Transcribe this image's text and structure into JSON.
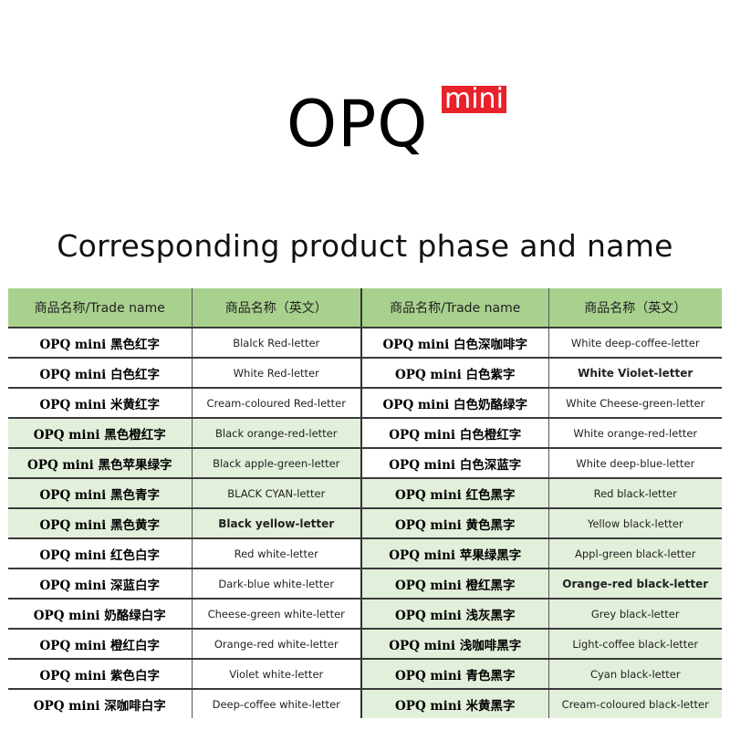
{
  "header": {
    "brand": "OPQ",
    "badge": "mini",
    "badge_color": "#e8222a",
    "subtitle": "Corresponding product phase and name"
  },
  "table": {
    "header_color": "#a9d18e",
    "row_green": "#e2efda",
    "columns": [
      "商品名称/Trade name",
      "商品名称（英文）",
      "商品名称/Trade name",
      "商品名称（英文）"
    ],
    "rows": [
      {
        "left_name": "OPQ mini 黑色红字",
        "left_en": "Blalck Red-letter",
        "left_green": false,
        "right_name": "OPQ mini 白色深咖啡字",
        "right_en": "White deep-coffee-letter",
        "right_green": false
      },
      {
        "left_name": "OPQ mini 白色红字",
        "left_en": "White Red-letter",
        "left_green": false,
        "right_name": "OPQ mini 白色紫字",
        "right_en": "White Violet-letter",
        "right_green": false
      },
      {
        "left_name": "OPQ mini 米黄红字",
        "left_en": "Cream-coloured Red-letter",
        "left_green": false,
        "right_name": "OPQ mini 白色奶酪绿字",
        "right_en": "White Cheese-green-letter",
        "right_green": false
      },
      {
        "left_name": "OPQ mini 黑色橙红字",
        "left_en": "Black orange-red-letter",
        "left_green": true,
        "right_name": "OPQ mini 白色橙红字",
        "right_en": "White orange-red-letter",
        "right_green": false
      },
      {
        "left_name": "OPQ mini 黑色苹果绿字",
        "left_en": "Black apple-green-letter",
        "left_green": true,
        "right_name": "OPQ mini 白色深蓝字",
        "right_en": "White deep-blue-letter",
        "right_green": false
      },
      {
        "left_name": "OPQ mini 黑色青字",
        "left_en": "BLACK CYAN-letter",
        "left_green": true,
        "right_name": "OPQ mini 红色黑字",
        "right_en": "Red black-letter",
        "right_green": true
      },
      {
        "left_name": "OPQ mini 黑色黄字",
        "left_en": "Black yellow-letter",
        "left_green": true,
        "right_name": "OPQ mini 黄色黑字",
        "right_en": "Yellow black-letter",
        "right_green": true
      },
      {
        "left_name": "OPQ mini 红色白字",
        "left_en": "Red white-letter",
        "left_green": false,
        "right_name": "OPQ mini 苹果绿黑字",
        "right_en": "Appl-green black-letter",
        "right_green": true
      },
      {
        "left_name": "OPQ mini 深蓝白字",
        "left_en": "Dark-blue white-letter",
        "left_green": false,
        "right_name": "OPQ mini 橙红黑字",
        "right_en": "Orange-red black-letter",
        "right_green": true
      },
      {
        "left_name": "OPQ mini 奶酪绿白字",
        "left_en": "Cheese-green white-letter",
        "left_green": false,
        "right_name": "OPQ mini 浅灰黑字",
        "right_en": "Grey black-letter",
        "right_green": true
      },
      {
        "left_name": "OPQ mini 橙红白字",
        "left_en": "Orange-red white-letter",
        "left_green": false,
        "right_name": "OPQ mini 浅咖啡黑字",
        "right_en": "Light-coffee black-letter",
        "right_green": true
      },
      {
        "left_name": "OPQ mini 紫色白字",
        "left_en": "Violet white-letter",
        "left_green": false,
        "right_name": "OPQ mini 青色黑字",
        "right_en": "Cyan black-letter",
        "right_green": true
      },
      {
        "left_name": "OPQ mini 深咖啡白字",
        "left_en": "Deep-coffee white-letter",
        "left_green": false,
        "right_name": "OPQ mini 米黄黑字",
        "right_en": "Cream-coloured black-letter",
        "right_green": true
      }
    ]
  }
}
